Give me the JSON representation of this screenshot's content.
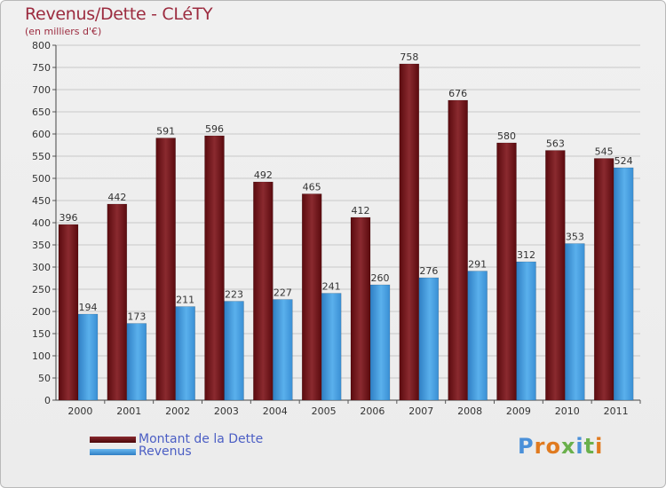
{
  "header": {
    "title": "Revenus/Dette - CLéTY",
    "subtitle": "(en milliers d'€)"
  },
  "legend": [
    {
      "label": "Montant de la Dette",
      "color": "#6b0f14"
    },
    {
      "label": "Revenus",
      "color": "#4aa0e0"
    }
  ],
  "logo": {
    "letters": [
      {
        "char": "P",
        "color": "#4a90d9"
      },
      {
        "char": "r",
        "color": "#e07a1f"
      },
      {
        "char": "o",
        "color": "#e07a1f"
      },
      {
        "char": "x",
        "color": "#6ab04c"
      },
      {
        "char": "i",
        "color": "#4a90d9"
      },
      {
        "char": "t",
        "color": "#6ab04c"
      },
      {
        "char": "i",
        "color": "#e07a1f"
      }
    ]
  },
  "chart_data": {
    "type": "bar",
    "title": "Revenus/Dette - CLéTY",
    "subtitle": "(en milliers d'€)",
    "categories": [
      "2000",
      "2001",
      "2002",
      "2003",
      "2004",
      "2005",
      "2006",
      "2007",
      "2008",
      "2009",
      "2010",
      "2011"
    ],
    "series": [
      {
        "name": "Montant de la Dette",
        "color": "#7a1a1e",
        "values": [
          396,
          442,
          591,
          596,
          492,
          465,
          412,
          758,
          676,
          580,
          563,
          545
        ]
      },
      {
        "name": "Revenus",
        "color": "#4aa0e0",
        "values": [
          194,
          173,
          211,
          223,
          227,
          241,
          260,
          276,
          291,
          312,
          353,
          524
        ]
      }
    ],
    "ylim": [
      0,
      800
    ],
    "yticks": [
      0,
      50,
      100,
      150,
      200,
      250,
      300,
      350,
      400,
      450,
      500,
      550,
      600,
      650,
      700,
      750,
      800
    ],
    "grid": true,
    "legend_position": "bottom-left"
  }
}
